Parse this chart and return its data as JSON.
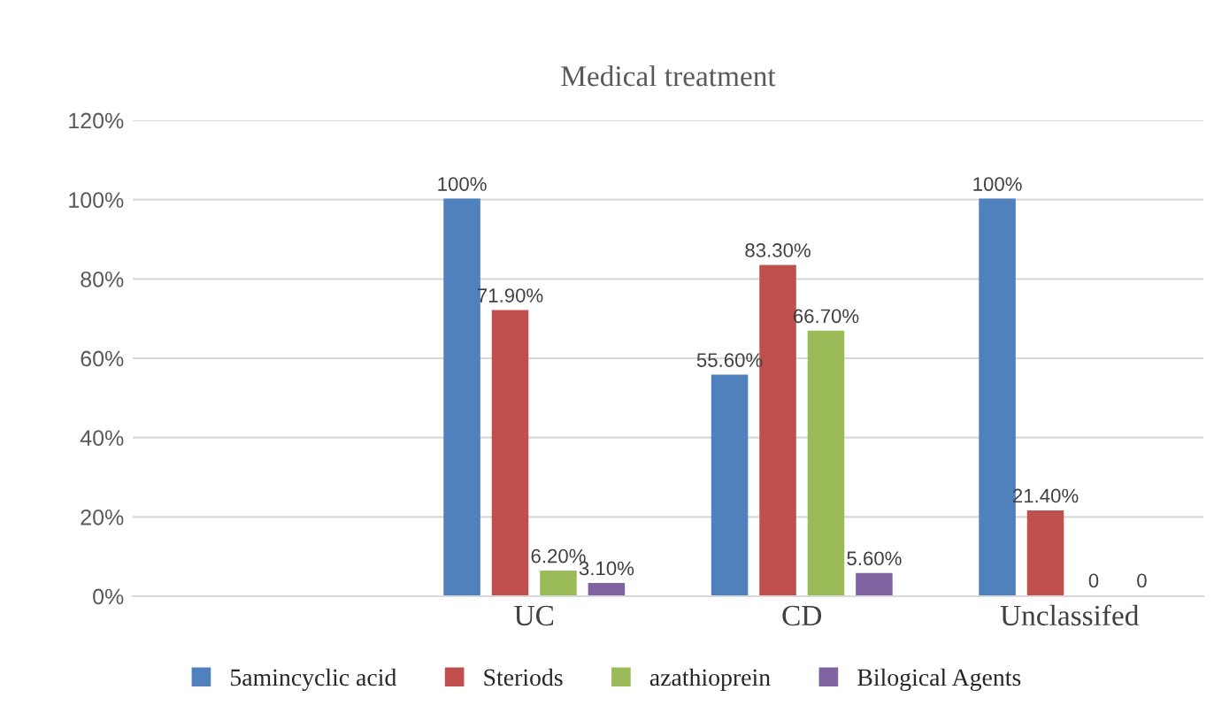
{
  "chart_data": {
    "type": "bar",
    "title": "Medical treatment",
    "categories": [
      null,
      "UC",
      "CD",
      "Unclassifed"
    ],
    "series": [
      {
        "name": "5amincyclic acid",
        "color": "#4f81bd",
        "values": [
          null,
          100,
          55.6,
          100
        ],
        "value_labels": [
          null,
          "100%",
          "55.60%",
          "100%"
        ]
      },
      {
        "name": "Steriods",
        "color": "#c0504d",
        "values": [
          null,
          71.9,
          83.3,
          21.4
        ],
        "value_labels": [
          null,
          "71.90%",
          "83.30%",
          "21.40%"
        ]
      },
      {
        "name": "azathioprein",
        "color": "#9bbb59",
        "values": [
          null,
          6.2,
          66.7,
          0
        ],
        "value_labels": [
          null,
          "6.20%",
          "66.70%",
          "0"
        ]
      },
      {
        "name": "Bilogical Agents",
        "color": "#8064a2",
        "values": [
          null,
          3.1,
          5.6,
          0
        ],
        "value_labels": [
          null,
          "3.10%",
          "5.60%",
          "0"
        ]
      }
    ],
    "ylim": [
      0,
      120
    ],
    "yticks": [
      {
        "value": 0,
        "label": "0%"
      },
      {
        "value": 20,
        "label": "20%"
      },
      {
        "value": 40,
        "label": "40%"
      },
      {
        "value": 60,
        "label": "60%"
      },
      {
        "value": 80,
        "label": "80%"
      },
      {
        "value": 100,
        "label": "100%"
      },
      {
        "value": 120,
        "label": "120%"
      }
    ],
    "grid": "y",
    "legend": "bottom"
  }
}
